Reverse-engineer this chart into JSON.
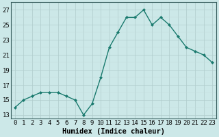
{
  "x": [
    0,
    1,
    2,
    3,
    4,
    5,
    6,
    7,
    8,
    9,
    10,
    11,
    12,
    13,
    14,
    15,
    16,
    17,
    18,
    19,
    20,
    21,
    22,
    23
  ],
  "y": [
    14.0,
    15.0,
    15.5,
    16.0,
    16.0,
    16.0,
    15.5,
    15.0,
    13.0,
    14.5,
    18.0,
    22.0,
    24.0,
    26.0,
    26.0,
    27.0,
    25.0,
    26.0,
    25.0,
    23.5,
    22.0,
    21.5,
    21.0,
    20.0
  ],
  "line_color": "#1a7a6e",
  "marker": "D",
  "marker_size": 2.0,
  "bg_color": "#cce8e8",
  "grid_major_color": "#b0cccc",
  "grid_minor_color": "#c4dcdc",
  "xlabel": "Humidex (Indice chaleur)",
  "xlim": [
    -0.5,
    23.5
  ],
  "ylim": [
    12.5,
    28.0
  ],
  "yticks": [
    13,
    15,
    17,
    19,
    21,
    23,
    25,
    27
  ],
  "xlabel_fontsize": 7.5,
  "tick_fontsize": 6.5,
  "line_width": 1.0,
  "spine_color": "#3a6060"
}
